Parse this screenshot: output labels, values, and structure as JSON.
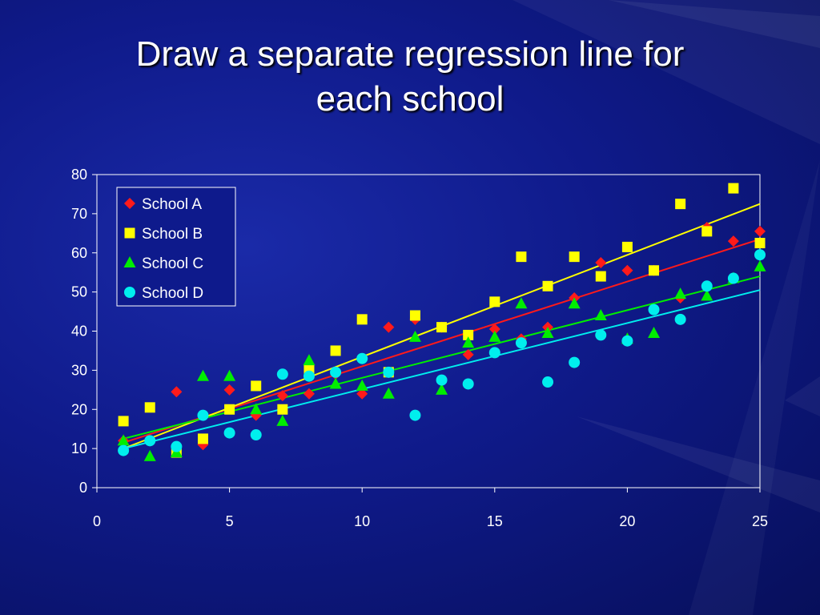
{
  "slide": {
    "title_line1": "Draw a separate regression line for",
    "title_line2": "each school"
  },
  "chart_data": {
    "type": "scatter",
    "xlim": [
      0,
      25
    ],
    "ylim": [
      0,
      80
    ],
    "xticks": [
      0,
      5,
      10,
      15,
      20,
      25
    ],
    "yticks": [
      0,
      10,
      20,
      30,
      40,
      50,
      60,
      70,
      80
    ],
    "grid": false,
    "legend_position": "top-left",
    "series": [
      {
        "name": "School A",
        "marker": "diamond",
        "color": "#ff1a1a",
        "line_color": "#ff1a1a",
        "points": [
          [
            1,
            12
          ],
          [
            2,
            12
          ],
          [
            3,
            24.5
          ],
          [
            4,
            11
          ],
          [
            5,
            25
          ],
          [
            6,
            18.5
          ],
          [
            7,
            23.5
          ],
          [
            8,
            24
          ],
          [
            9,
            29
          ],
          [
            10,
            24
          ],
          [
            11,
            41
          ],
          [
            12,
            43
          ],
          [
            13,
            41
          ],
          [
            14,
            34
          ],
          [
            15,
            40.5
          ],
          [
            16,
            38
          ],
          [
            17,
            41
          ],
          [
            18,
            48.5
          ],
          [
            19,
            57.5
          ],
          [
            20,
            55.5
          ],
          [
            21,
            55.5
          ],
          [
            22,
            48.5
          ],
          [
            23,
            66.5
          ],
          [
            24,
            63
          ],
          [
            25,
            65.5
          ]
        ],
        "regression": [
          [
            1,
            11.5
          ],
          [
            25,
            63.5
          ]
        ]
      },
      {
        "name": "School B",
        "marker": "square",
        "color": "#ffff00",
        "line_color": "#ffff00",
        "points": [
          [
            1,
            17
          ],
          [
            2,
            20.5
          ],
          [
            3,
            9
          ],
          [
            4,
            12.5
          ],
          [
            5,
            20
          ],
          [
            6,
            26
          ],
          [
            7,
            20
          ],
          [
            8,
            30
          ],
          [
            9,
            35
          ],
          [
            10,
            43
          ],
          [
            11,
            29.5
          ],
          [
            12,
            44
          ],
          [
            13,
            41
          ],
          [
            14,
            39
          ],
          [
            15,
            47.5
          ],
          [
            16,
            59
          ],
          [
            17,
            51.5
          ],
          [
            18,
            59
          ],
          [
            19,
            54
          ],
          [
            20,
            61.5
          ],
          [
            21,
            55.5
          ],
          [
            22,
            72.5
          ],
          [
            23,
            65.5
          ],
          [
            24,
            76.5
          ],
          [
            25,
            62.5
          ]
        ],
        "regression": [
          [
            1,
            10
          ],
          [
            25,
            72.5
          ]
        ]
      },
      {
        "name": "School C",
        "marker": "triangle",
        "color": "#00ee00",
        "line_color": "#00ee00",
        "points": [
          [
            1,
            12
          ],
          [
            2,
            8
          ],
          [
            3,
            9
          ],
          [
            4,
            28.5
          ],
          [
            5,
            28.5
          ],
          [
            6,
            20
          ],
          [
            7,
            17
          ],
          [
            8,
            32.5
          ],
          [
            9,
            26.5
          ],
          [
            10,
            26
          ],
          [
            11,
            24
          ],
          [
            12,
            38.5
          ],
          [
            13,
            25
          ],
          [
            14,
            37
          ],
          [
            15,
            38.5
          ],
          [
            16,
            47
          ],
          [
            17,
            39.5
          ],
          [
            18,
            47
          ],
          [
            19,
            44
          ],
          [
            20,
            38
          ],
          [
            21,
            39.5
          ],
          [
            22,
            49.5
          ],
          [
            23,
            49
          ],
          [
            24,
            53.5
          ],
          [
            25,
            56.5
          ]
        ],
        "regression": [
          [
            1,
            12.5
          ],
          [
            25,
            54
          ]
        ]
      },
      {
        "name": "School D",
        "marker": "circle",
        "color": "#00eeee",
        "line_color": "#00eeee",
        "points": [
          [
            1,
            9.5
          ],
          [
            2,
            12
          ],
          [
            3,
            10.5
          ],
          [
            4,
            18.5
          ],
          [
            5,
            14
          ],
          [
            6,
            13.5
          ],
          [
            7,
            29
          ],
          [
            8,
            28.5
          ],
          [
            9,
            29.5
          ],
          [
            10,
            33
          ],
          [
            11,
            29.5
          ],
          [
            12,
            18.5
          ],
          [
            13,
            27.5
          ],
          [
            14,
            26.5
          ],
          [
            15,
            34.5
          ],
          [
            16,
            37
          ],
          [
            17,
            27
          ],
          [
            18,
            32
          ],
          [
            19,
            39
          ],
          [
            20,
            37.5
          ],
          [
            21,
            45.5
          ],
          [
            22,
            43
          ],
          [
            23,
            51.5
          ],
          [
            24,
            53.5
          ],
          [
            25,
            59.5
          ]
        ],
        "regression": [
          [
            1,
            10
          ],
          [
            25,
            50.5
          ]
        ]
      }
    ]
  }
}
